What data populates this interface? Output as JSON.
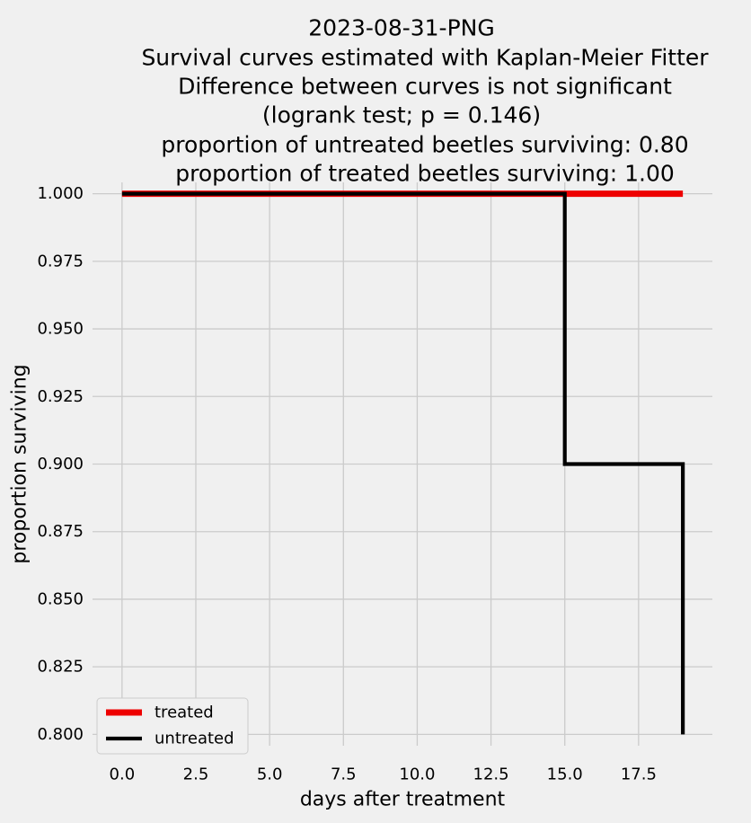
{
  "chart_data": {
    "type": "line",
    "step": true,
    "title_lines": [
      "2023-08-31-PNG",
      "Survival curves estimated with Kaplan-Meier Fitter",
      "Difference between curves is not significant",
      "(logrank test; p = 0.146)",
      "proportion of untreated beetles surviving: 0.80",
      "proportion of treated beetles surviving: 1.00"
    ],
    "xlabel": "days after treatment",
    "ylabel": "proportion surviving",
    "xlim": [
      -1,
      20
    ],
    "ylim": [
      0.7958,
      1.0042
    ],
    "x_ticks": [
      0,
      2.5,
      5,
      7.5,
      10,
      12.5,
      15,
      17.5
    ],
    "x_tick_labels": [
      "0.0",
      "2.5",
      "5.0",
      "7.5",
      "10.0",
      "12.5",
      "15.0",
      "17.5"
    ],
    "y_ticks": [
      0.8,
      0.825,
      0.85,
      0.875,
      0.9,
      0.925,
      0.95,
      0.975,
      1.0
    ],
    "y_tick_labels": [
      "0.800",
      "0.825",
      "0.850",
      "0.875",
      "0.900",
      "0.925",
      "0.950",
      "0.975",
      "1.000"
    ],
    "grid": true,
    "legend_position": "lower-left",
    "series": [
      {
        "name": "treated",
        "color": "#ee0000",
        "points": [
          [
            0,
            1.0
          ],
          [
            19,
            1.0
          ]
        ]
      },
      {
        "name": "untreated",
        "color": "#000000",
        "points": [
          [
            0,
            1.0
          ],
          [
            15,
            1.0
          ],
          [
            15,
            0.9
          ],
          [
            19,
            0.9
          ],
          [
            19,
            0.8
          ]
        ]
      }
    ]
  }
}
